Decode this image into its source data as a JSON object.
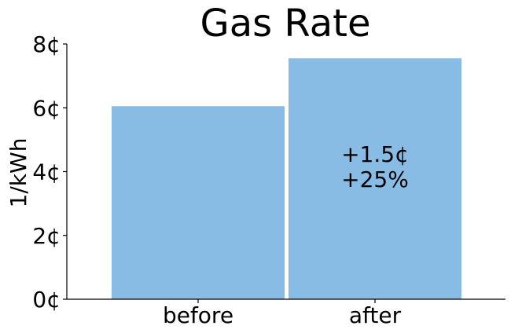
{
  "chart_data": {
    "type": "bar",
    "title": "Gas Rate",
    "ylabel": "1/kWh",
    "xlabel": "",
    "categories": [
      "before",
      "after"
    ],
    "values": [
      6.05,
      7.55
    ],
    "ylim": [
      0,
      8
    ],
    "yticks": [
      0,
      2,
      4,
      6,
      8
    ],
    "ytick_labels": [
      "0¢",
      "2¢",
      "4¢",
      "6¢",
      "8¢"
    ],
    "bar_color": "#88bce4",
    "grid": false,
    "annotation": {
      "category": "after",
      "lines": [
        "+1.5¢",
        "+25%"
      ]
    }
  }
}
